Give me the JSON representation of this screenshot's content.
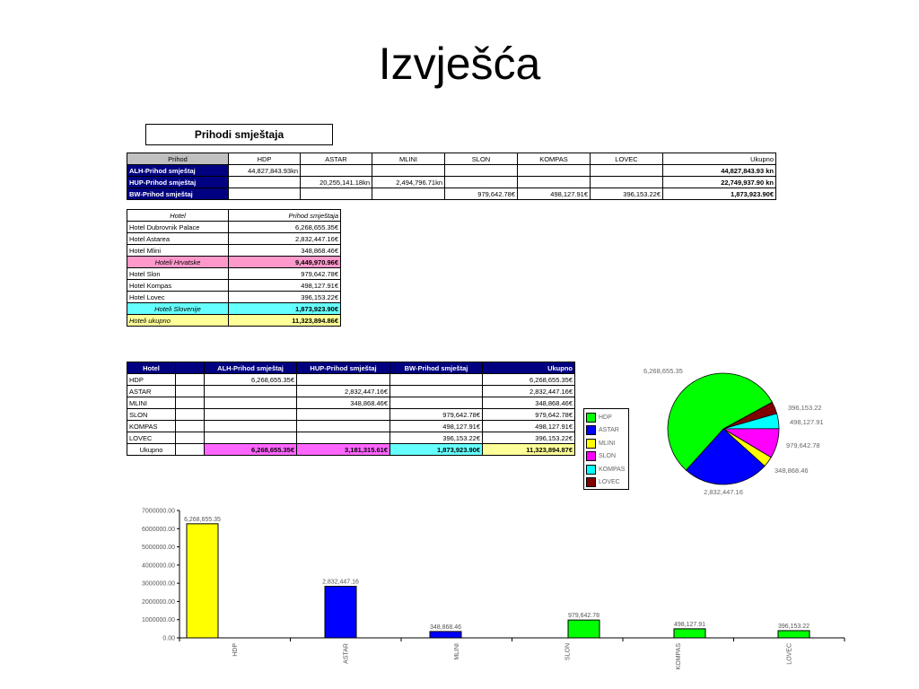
{
  "slide": {
    "title": "Izvješća"
  },
  "box_title": "Prihodi smještaja",
  "table1": {
    "headers": [
      "Prihod",
      "HDP",
      "ASTAR",
      "MLINI",
      "SLON",
      "KOMPAS",
      "LOVEC",
      "Ukupno"
    ],
    "rows": [
      {
        "label": "ALH-Prihod smještaj",
        "cells": [
          "44,827,843.93kn",
          "",
          "",
          "",
          "",
          "",
          "44,827,843.93 kn"
        ]
      },
      {
        "label": "HUP-Prihod smještaj",
        "cells": [
          "",
          "20,255,141.18kn",
          "2,494,796.71kn",
          "",
          "",
          "",
          "22,749,937.90 kn"
        ]
      },
      {
        "label": "BW-Prihod smještaj",
        "cells": [
          "",
          "",
          "",
          "979,642.78€",
          "498,127.91€",
          "396,153.22€",
          "1,873,923.90€"
        ]
      }
    ]
  },
  "table2": {
    "header_left": "Hotel",
    "header_right": "Prihod smještaja",
    "rows": [
      {
        "label": "Hotel Dubrovnik Palace",
        "value": "6,268,655.35€",
        "style": ""
      },
      {
        "label": "Hotel Astarea",
        "value": "2,832,447.16€",
        "style": ""
      },
      {
        "label": "Hotel Mlini",
        "value": "348,868.46€",
        "style": ""
      },
      {
        "label": "Hoteli Hrvatske",
        "value": "9,449,970.96€",
        "style": "pink"
      },
      {
        "label": "Hotel Slon",
        "value": "979,642.78€",
        "style": ""
      },
      {
        "label": "Hotel Kompas",
        "value": "498,127.91€",
        "style": ""
      },
      {
        "label": "Hotel Lovec",
        "value": "396,153.22€",
        "style": ""
      },
      {
        "label": "Hoteli Slovenije",
        "value": "1,873,923.90€",
        "style": "cyan"
      },
      {
        "label": "Hoteli ukupno",
        "value": "11,323,894.86€",
        "style": "yellow"
      }
    ]
  },
  "table3": {
    "headers": [
      "Hotel",
      "",
      "ALH-Prihod smještaj",
      "HUP-Prihod smještaj",
      "BW-Prihod smještaj",
      "Ukupno"
    ],
    "rows": [
      {
        "label": "HDP",
        "cells": [
          "",
          "6,268,655.35€",
          "",
          "",
          "6,268,655.35€"
        ]
      },
      {
        "label": "ASTAR",
        "cells": [
          "",
          "",
          "2,832,447.16€",
          "",
          "2,832,447.16€"
        ]
      },
      {
        "label": "MLINI",
        "cells": [
          "",
          "",
          "348,868.46€",
          "",
          "348,868.46€"
        ]
      },
      {
        "label": "SLON",
        "cells": [
          "",
          "",
          "",
          "979,642.78€",
          "979,642.78€"
        ]
      },
      {
        "label": "KOMPAS",
        "cells": [
          "",
          "",
          "",
          "498,127.91€",
          "498,127.91€"
        ]
      },
      {
        "label": "LOVEC",
        "cells": [
          "",
          "",
          "",
          "396,153.22€",
          "396,153.22€"
        ]
      }
    ],
    "total": {
      "label": "Ukupno",
      "cells": [
        "",
        "6,268,655.35€",
        "3,181,315.61€",
        "1,873,923.90€",
        "11,323,894.87€"
      ]
    }
  },
  "colors": {
    "HDP": "#00ff00",
    "ASTAR": "#0000ff",
    "MLINI": "#ffff00",
    "SLON": "#ff00ff",
    "KOMPAS": "#00ffff",
    "LOVEC": "#800000",
    "bar_yellow": "#ffff00"
  },
  "chart_data": [
    {
      "type": "pie",
      "categories": [
        "HDP",
        "ASTAR",
        "MLINI",
        "SLON",
        "KOMPAS",
        "LOVEC"
      ],
      "values": [
        6268655.35,
        2832447.16,
        348868.46,
        979642.78,
        498127.91,
        396153.22
      ],
      "data_labels": [
        "6,268,655.35",
        "2,832,447.16",
        "348,868.46",
        "979,642.78",
        "498,127.91",
        "396,153.22"
      ],
      "legend": [
        "HDP",
        "ASTAR",
        "MLINI",
        "SLON",
        "KOMPAS",
        "LOVEC"
      ],
      "legend_position": "left"
    },
    {
      "type": "bar",
      "categories": [
        "HDP",
        "ASTAR",
        "MLINI",
        "SLON",
        "KOMPAS",
        "LOVEC"
      ],
      "values": [
        6268655.35,
        2832447.16,
        348868.46,
        979642.78,
        498127.91,
        396153.22
      ],
      "data_labels": [
        "6,268,655.35",
        "2,832,447.16",
        "348,868.46",
        "979,642.78",
        "498,127.91",
        "396,153.22"
      ],
      "ylim": [
        0,
        7000000
      ],
      "yticks": [
        "0.00",
        "1000000.00",
        "2000000.00",
        "3000000.00",
        "4000000.00",
        "5000000.00",
        "6000000.00",
        "7000000.00"
      ],
      "grid": false
    }
  ]
}
